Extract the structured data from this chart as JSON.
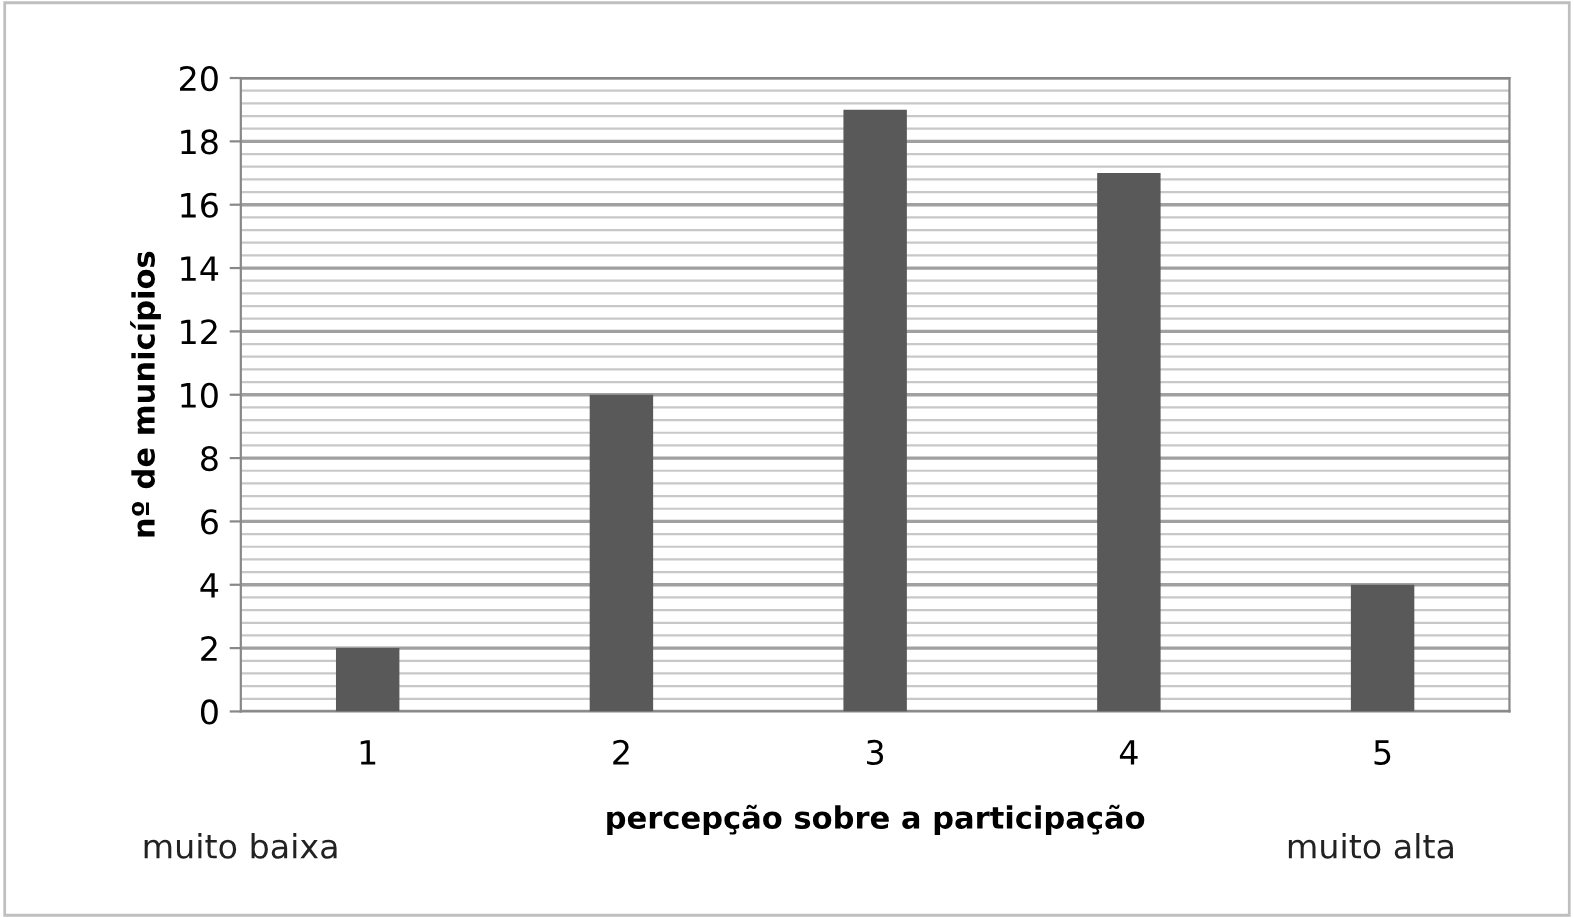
{
  "chart_data": {
    "type": "bar",
    "xlabel": "percepção sobre a participação",
    "ylabel": "nº de municípios",
    "categories": [
      "1",
      "2",
      "3",
      "4",
      "5"
    ],
    "values": [
      2,
      10,
      19,
      17,
      4
    ],
    "color": "#595959",
    "ylim": [
      0,
      20
    ],
    "yticks": [
      0,
      2,
      4,
      6,
      8,
      10,
      12,
      14,
      16,
      18,
      20
    ],
    "grid": "y",
    "annotations": [
      "muito baixa",
      "muito alta"
    ]
  }
}
